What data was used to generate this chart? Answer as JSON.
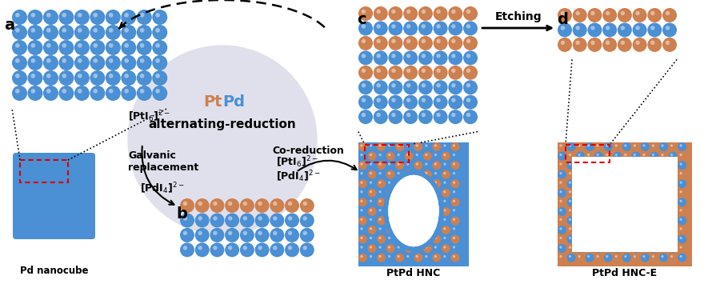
{
  "blue": "#4B8FD4",
  "orange": "#CD8050",
  "white": "#FFFFFF",
  "black": "#000000",
  "red": "#DD0000",
  "gray_bg": "#E0E0EC",
  "label_a": "a",
  "label_b": "b",
  "label_c": "c",
  "label_d": "d",
  "pd_nanocube": "Pd nanocube",
  "ptpd_hnc": "PtPd HNC",
  "ptpd_hnce": "PtPd HNC-E",
  "pt_text": "Pt",
  "pd_text": "Pd",
  "alternating": "alternating-reduction",
  "galvanic": "Galvanic\nreplacement",
  "co_reduction": "Co-reduction",
  "pti6": "[PtI$_6$]$^{2-}$",
  "pdi4": "[PdI$_4$]$^{2-}$",
  "etching": "Etching",
  "fig_w": 8.9,
  "fig_h": 3.55,
  "dpi": 100
}
